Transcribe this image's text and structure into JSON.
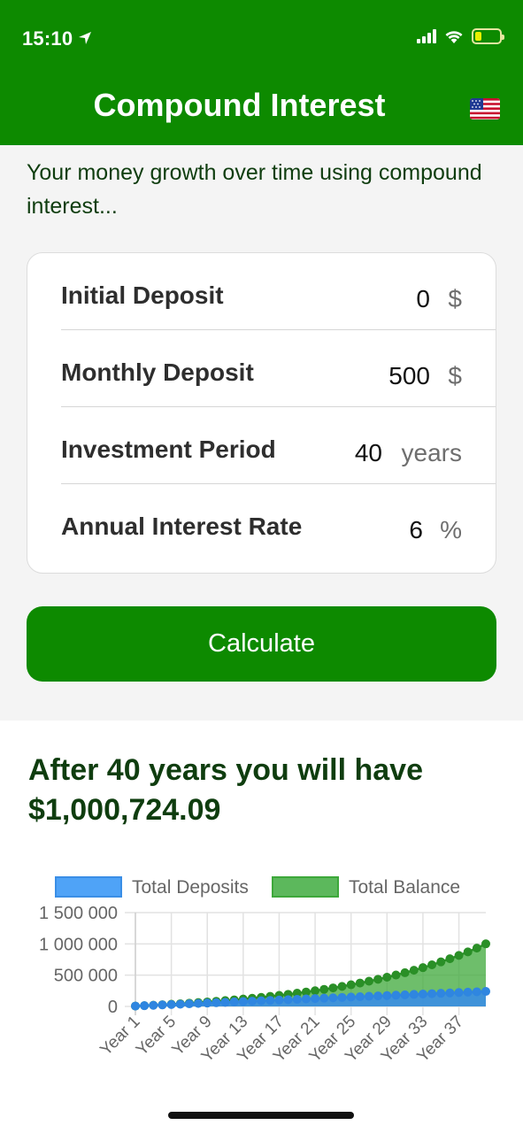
{
  "status": {
    "time": "15:10"
  },
  "header": {
    "title": "Compound Interest"
  },
  "intro": "Your money growth over time using compound interest...",
  "form": {
    "rows": [
      {
        "label": "Initial Deposit",
        "value": "0",
        "unit": "$"
      },
      {
        "label": "Monthly Deposit",
        "value": "500",
        "unit": "$"
      },
      {
        "label": "Investment Period",
        "value": "40",
        "unit": "years"
      },
      {
        "label": "Annual Interest Rate",
        "value": "6",
        "unit": "%"
      }
    ]
  },
  "calculate_label": "Calculate",
  "result": {
    "line1": "After 40 years you will have",
    "line2": "$1,000,724.09"
  },
  "colors": {
    "brand": "#0d8a00",
    "deposits": "#3a8ee6",
    "balance": "#3da83a"
  },
  "chart_data": {
    "type": "line",
    "legend": [
      "Total Deposits",
      "Total Balance"
    ],
    "y_ticks": [
      "1 500 000",
      "1 000 000",
      "500 000",
      "0"
    ],
    "ylim": [
      0,
      1500000
    ],
    "x_tick_labels": [
      "Year 1",
      "Year 5",
      "Year 9",
      "Year 13",
      "Year 17",
      "Year 21",
      "Year 25",
      "Year 29",
      "Year 33",
      "Year 37"
    ],
    "x": [
      1,
      2,
      3,
      4,
      5,
      6,
      7,
      8,
      9,
      10,
      11,
      12,
      13,
      14,
      15,
      16,
      17,
      18,
      19,
      20,
      21,
      22,
      23,
      24,
      25,
      26,
      27,
      28,
      29,
      30,
      31,
      32,
      33,
      34,
      35,
      36,
      37,
      38,
      39,
      40
    ],
    "series": [
      {
        "name": "Total Deposits",
        "values": [
          6000,
          12000,
          18000,
          24000,
          30000,
          36000,
          42000,
          48000,
          54000,
          60000,
          66000,
          72000,
          78000,
          84000,
          90000,
          96000,
          102000,
          108000,
          114000,
          120000,
          126000,
          132000,
          138000,
          144000,
          150000,
          156000,
          162000,
          168000,
          174000,
          180000,
          186000,
          192000,
          198000,
          204000,
          210000,
          216000,
          222000,
          228000,
          234000,
          240000
        ]
      },
      {
        "name": "Total Balance",
        "values": [
          6168,
          12714,
          19665,
          27044,
          34885,
          43209,
          52047,
          61430,
          71393,
          81940,
          93142,
          105036,
          117665,
          131075,
          145313,
          160430,
          176477,
          193519,
          211617,
          230823,
          251225,
          272886,
          295885,
          320303,
          346227,
          373750,
          402973,
          434005,
          466952,
          501936,
          539081,
          578523,
          620402,
          664870,
          712088,
          762224,
          815456,
          871982,
          931998,
          1000724
        ]
      }
    ]
  }
}
